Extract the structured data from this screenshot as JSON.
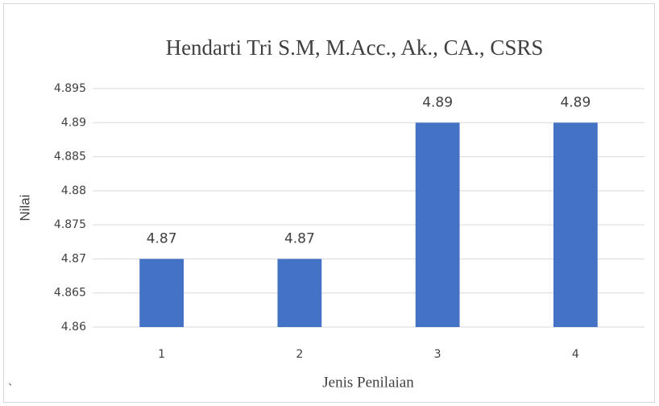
{
  "chart_data": {
    "type": "bar",
    "title": "Hendarti Tri S.M, M.Acc., Ak., CA., CSRS",
    "xlabel": "Jenis Penilaian",
    "ylabel": "Nilai",
    "categories": [
      "1",
      "2",
      "3",
      "4"
    ],
    "values": [
      4.87,
      4.87,
      4.89,
      4.89
    ],
    "color": "#4472c4",
    "ylim": [
      4.86,
      4.895
    ],
    "yticks": [
      4.86,
      4.865,
      4.87,
      4.875,
      4.88,
      4.885,
      4.89,
      4.895
    ],
    "grid": true,
    "annotation": "`"
  }
}
